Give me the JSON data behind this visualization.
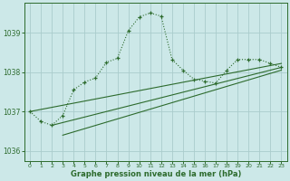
{
  "title": "Graphe pression niveau de la mer (hPa)",
  "background_color": "#cce8e8",
  "grid_color": "#aacccc",
  "line_color": "#2d6b2d",
  "xlim": [
    -0.5,
    23.5
  ],
  "ylim": [
    1035.75,
    1039.75
  ],
  "yticks": [
    1036,
    1037,
    1038,
    1039
  ],
  "xticks": [
    0,
    1,
    2,
    3,
    4,
    5,
    6,
    7,
    8,
    9,
    10,
    11,
    12,
    13,
    14,
    15,
    16,
    17,
    18,
    19,
    20,
    21,
    22,
    23
  ],
  "main_x": [
    0,
    1,
    2,
    3,
    4,
    5,
    6,
    7,
    8,
    9,
    10,
    11,
    12,
    13,
    14,
    15,
    16,
    17,
    18,
    19,
    20,
    21,
    22,
    23
  ],
  "main_y": [
    1037.0,
    1036.75,
    1036.65,
    1036.9,
    1037.55,
    1037.75,
    1037.85,
    1038.25,
    1038.35,
    1039.05,
    1039.4,
    1039.5,
    1039.42,
    1038.32,
    1038.05,
    1037.82,
    1037.77,
    1037.72,
    1038.05,
    1038.32,
    1038.32,
    1038.32,
    1038.22,
    1038.12
  ],
  "trend1_x": [
    0,
    23
  ],
  "trend1_y": [
    1037.0,
    1038.22
  ],
  "trend2_x": [
    2,
    23
  ],
  "trend2_y": [
    1036.65,
    1038.12
  ],
  "trend3_x": [
    3,
    23
  ],
  "trend3_y": [
    1036.4,
    1038.05
  ]
}
